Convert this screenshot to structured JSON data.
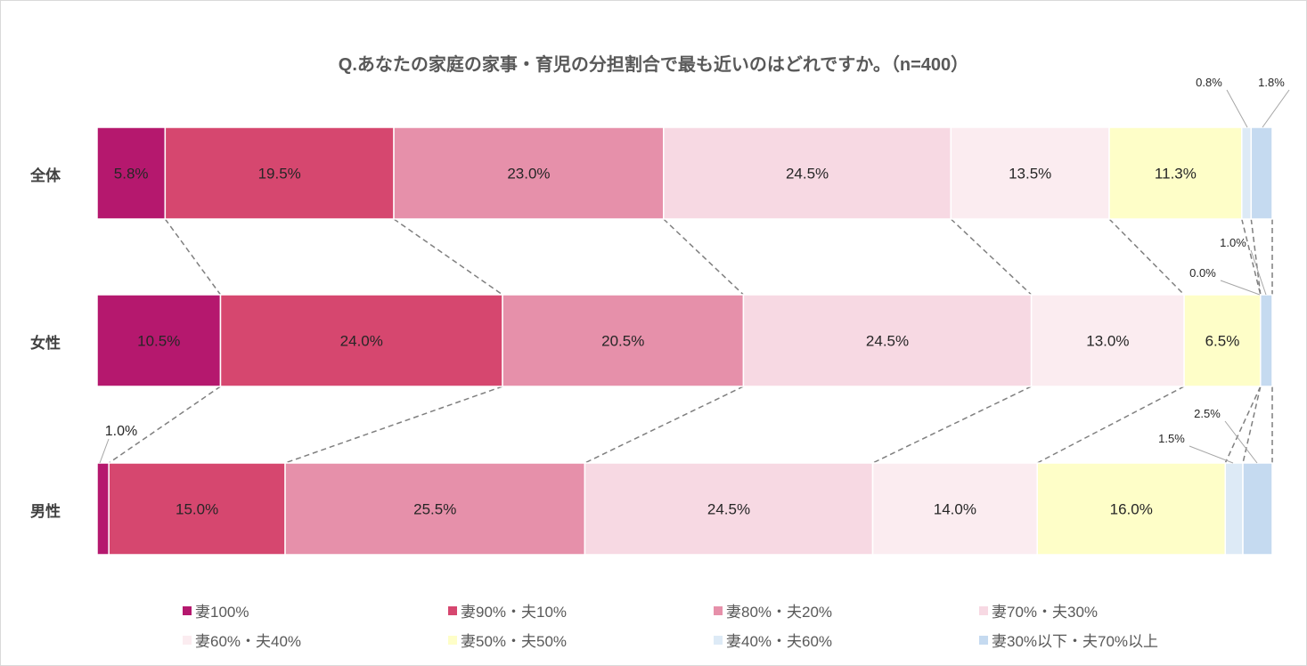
{
  "chart_data": {
    "type": "bar",
    "orientation": "horizontal-stacked-100",
    "title": "Q.あなたの家庭の家事・育児の分担割合で最も近いのはどれですか。（n=400）",
    "categories": [
      "全体",
      "女性",
      "男性"
    ],
    "series": [
      {
        "name": "妻100%",
        "color": "#b5186e",
        "values": [
          5.8,
          10.5,
          1.0
        ]
      },
      {
        "name": "妻90%・夫10%",
        "color": "#d6476f",
        "values": [
          19.5,
          24.0,
          15.0
        ]
      },
      {
        "name": "妻80%・夫20%",
        "color": "#e690aa",
        "values": [
          23.0,
          20.5,
          25.5
        ]
      },
      {
        "name": "妻70%・夫30%",
        "color": "#f7d9e3",
        "values": [
          24.5,
          24.5,
          24.5
        ]
      },
      {
        "name": "妻60%・夫40%",
        "color": "#fbecf0",
        "values": [
          13.5,
          13.0,
          14.0
        ]
      },
      {
        "name": "妻50%・夫50%",
        "color": "#fefec8",
        "values": [
          11.3,
          6.5,
          16.0
        ]
      },
      {
        "name": "妻40%・夫60%",
        "color": "#ddeaf6",
        "values": [
          0.8,
          0.0,
          1.5
        ]
      },
      {
        "name": "妻30%以下・夫70%以上",
        "color": "#c5daf0",
        "values": [
          1.8,
          1.0,
          2.5
        ]
      }
    ],
    "data_labels": [
      [
        "5.8%",
        "19.5%",
        "23.0%",
        "24.5%",
        "13.5%",
        "11.3%",
        "0.8%",
        "1.8%"
      ],
      [
        "10.5%",
        "24.0%",
        "20.5%",
        "24.5%",
        "13.0%",
        "6.5%",
        "0.0%",
        "1.0%"
      ],
      [
        "1.0%",
        "15.0%",
        "25.5%",
        "24.5%",
        "14.0%",
        "16.0%",
        "1.5%",
        "2.5%"
      ]
    ],
    "xlim": [
      0,
      100
    ],
    "legend_position": "bottom",
    "grid": false,
    "series_lines": "dashed"
  }
}
